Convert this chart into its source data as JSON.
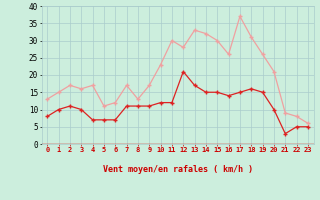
{
  "hours": [
    0,
    1,
    2,
    3,
    4,
    5,
    6,
    7,
    8,
    9,
    10,
    11,
    12,
    13,
    14,
    15,
    16,
    17,
    18,
    19,
    20,
    21,
    22,
    23
  ],
  "wind_avg": [
    8,
    10,
    11,
    10,
    7,
    7,
    7,
    11,
    11,
    11,
    12,
    12,
    21,
    17,
    15,
    15,
    14,
    15,
    16,
    15,
    10,
    3,
    5,
    5
  ],
  "wind_gust": [
    13,
    15,
    17,
    16,
    17,
    11,
    12,
    17,
    13,
    17,
    23,
    30,
    28,
    33,
    32,
    30,
    26,
    37,
    31,
    26,
    21,
    9,
    8,
    6
  ],
  "avg_color": "#dd2222",
  "gust_color": "#f0a0a0",
  "bg_color": "#cceedd",
  "grid_color": "#aacccc",
  "axis_color": "#cc0000",
  "xlabel": "Vent moyen/en rafales ( km/h )",
  "ylim": [
    0,
    40
  ],
  "yticks": [
    0,
    5,
    10,
    15,
    20,
    25,
    30,
    35,
    40
  ],
  "arrow_chars": [
    "→",
    "→",
    "→",
    "→",
    "→",
    "→",
    "↗",
    "→",
    "→",
    "→",
    "→",
    "→",
    "↗",
    "→",
    "→",
    "→",
    "→",
    "↘",
    "↓",
    "↓",
    "↙",
    "←",
    "↑",
    "↑"
  ]
}
